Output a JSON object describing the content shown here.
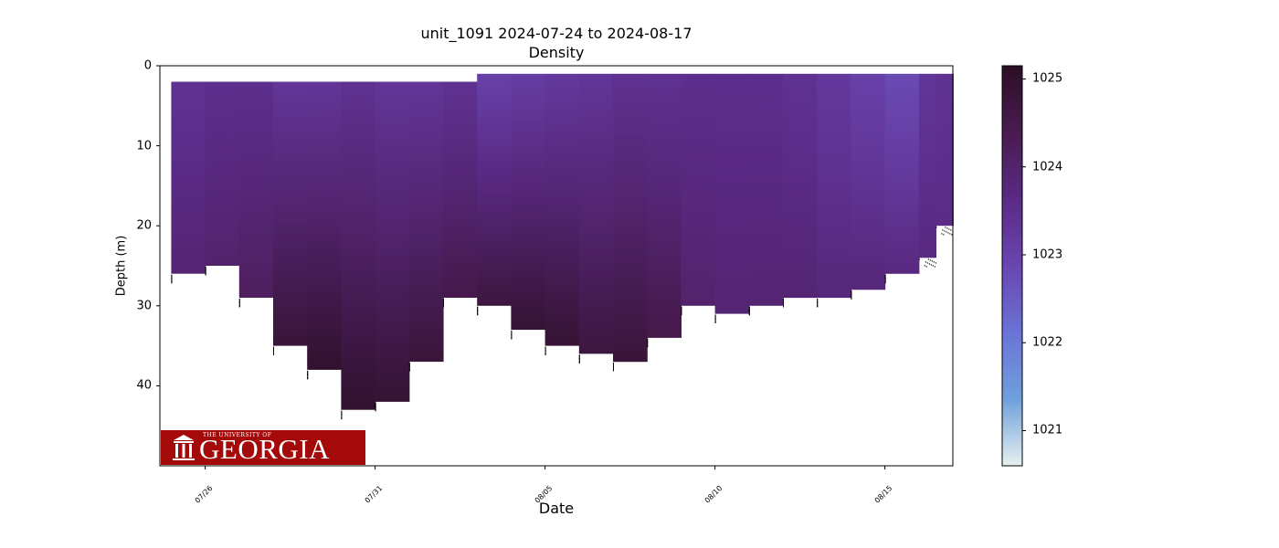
{
  "chart_data": {
    "type": "scatter",
    "title": "unit_1091 2024-07-24 to 2024-08-17",
    "subtitle": "Density",
    "xlabel": "Date",
    "ylabel": "Depth (m)",
    "xlim": [
      "2024-07-24T16:00",
      "2024-08-17T00:00"
    ],
    "ylim": [
      50,
      0
    ],
    "y_inverted": true,
    "x_ticks": [
      "07/26",
      "07/31",
      "08/05",
      "08/10",
      "08/15"
    ],
    "y_ticks": [
      0,
      10,
      20,
      30,
      40
    ],
    "grid": false,
    "colormap": [
      "#e6f0ef",
      "#6fa0dc",
      "#6a73d6",
      "#6a45b0",
      "#5a2a85",
      "#491b50",
      "#2b0f25"
    ],
    "colorbar": {
      "min": 1020.6,
      "max": 1025.15,
      "ticks": [
        1021,
        1022,
        1023,
        1024,
        1025
      ]
    },
    "series": [
      {
        "values": [
          {
            "x": "2024-07-25",
            "top": 2,
            "bottom": 26,
            "surface": 1023.4,
            "deep": 1023.9
          },
          {
            "x": "2024-07-26",
            "top": 2,
            "bottom": 25,
            "surface": 1023.5,
            "deep": 1024.0
          },
          {
            "x": "2024-07-27",
            "top": 2,
            "bottom": 29,
            "surface": 1023.5,
            "deep": 1024.2
          },
          {
            "x": "2024-07-28",
            "top": 2,
            "bottom": 35,
            "surface": 1023.3,
            "deep": 1024.8
          },
          {
            "x": "2024-07-29",
            "top": 2,
            "bottom": 38,
            "surface": 1023.3,
            "deep": 1025.0
          },
          {
            "x": "2024-07-30",
            "top": 2,
            "bottom": 43,
            "surface": 1023.4,
            "deep": 1025.0
          },
          {
            "x": "2024-07-31",
            "top": 2,
            "bottom": 42,
            "surface": 1023.3,
            "deep": 1024.9
          },
          {
            "x": "2024-08-01",
            "top": 2,
            "bottom": 37,
            "surface": 1023.3,
            "deep": 1024.8
          },
          {
            "x": "2024-08-02",
            "top": 2,
            "bottom": 29,
            "surface": 1023.4,
            "deep": 1024.5
          },
          {
            "x": "2024-08-03",
            "top": 1,
            "bottom": 30,
            "surface": 1023.0,
            "deep": 1024.7
          },
          {
            "x": "2024-08-04",
            "top": 1,
            "bottom": 33,
            "surface": 1023.1,
            "deep": 1024.9
          },
          {
            "x": "2024-08-05",
            "top": 1,
            "bottom": 35,
            "surface": 1023.2,
            "deep": 1024.9
          },
          {
            "x": "2024-08-06",
            "top": 1,
            "bottom": 36,
            "surface": 1023.3,
            "deep": 1024.7
          },
          {
            "x": "2024-08-07",
            "top": 1,
            "bottom": 37,
            "surface": 1023.4,
            "deep": 1024.8
          },
          {
            "x": "2024-08-08",
            "top": 1,
            "bottom": 34,
            "surface": 1023.4,
            "deep": 1024.5
          },
          {
            "x": "2024-08-09",
            "top": 1,
            "bottom": 30,
            "surface": 1023.5,
            "deep": 1024.0
          },
          {
            "x": "2024-08-10",
            "top": 1,
            "bottom": 31,
            "surface": 1023.5,
            "deep": 1023.9
          },
          {
            "x": "2024-08-11",
            "top": 1,
            "bottom": 30,
            "surface": 1023.5,
            "deep": 1023.9
          },
          {
            "x": "2024-08-12",
            "top": 1,
            "bottom": 29,
            "surface": 1023.4,
            "deep": 1023.9
          },
          {
            "x": "2024-08-13",
            "top": 1,
            "bottom": 29,
            "surface": 1023.2,
            "deep": 1023.8
          },
          {
            "x": "2024-08-14",
            "top": 1,
            "bottom": 28,
            "surface": 1023.0,
            "deep": 1023.8
          },
          {
            "x": "2024-08-15",
            "top": 1,
            "bottom": 26,
            "surface": 1022.8,
            "deep": 1023.7
          },
          {
            "x": "2024-08-16",
            "top": 1,
            "bottom": 24,
            "surface": 1023.3,
            "deep": 1023.7
          },
          {
            "x": "2024-08-16T12:00",
            "top": 1,
            "bottom": 20,
            "surface": 1023.4,
            "deep": 1023.6
          }
        ]
      }
    ]
  },
  "logo": {
    "small_text": "THE UNIVERSITY OF",
    "big_text": "GEORGIA",
    "background": "#a50a0a"
  }
}
